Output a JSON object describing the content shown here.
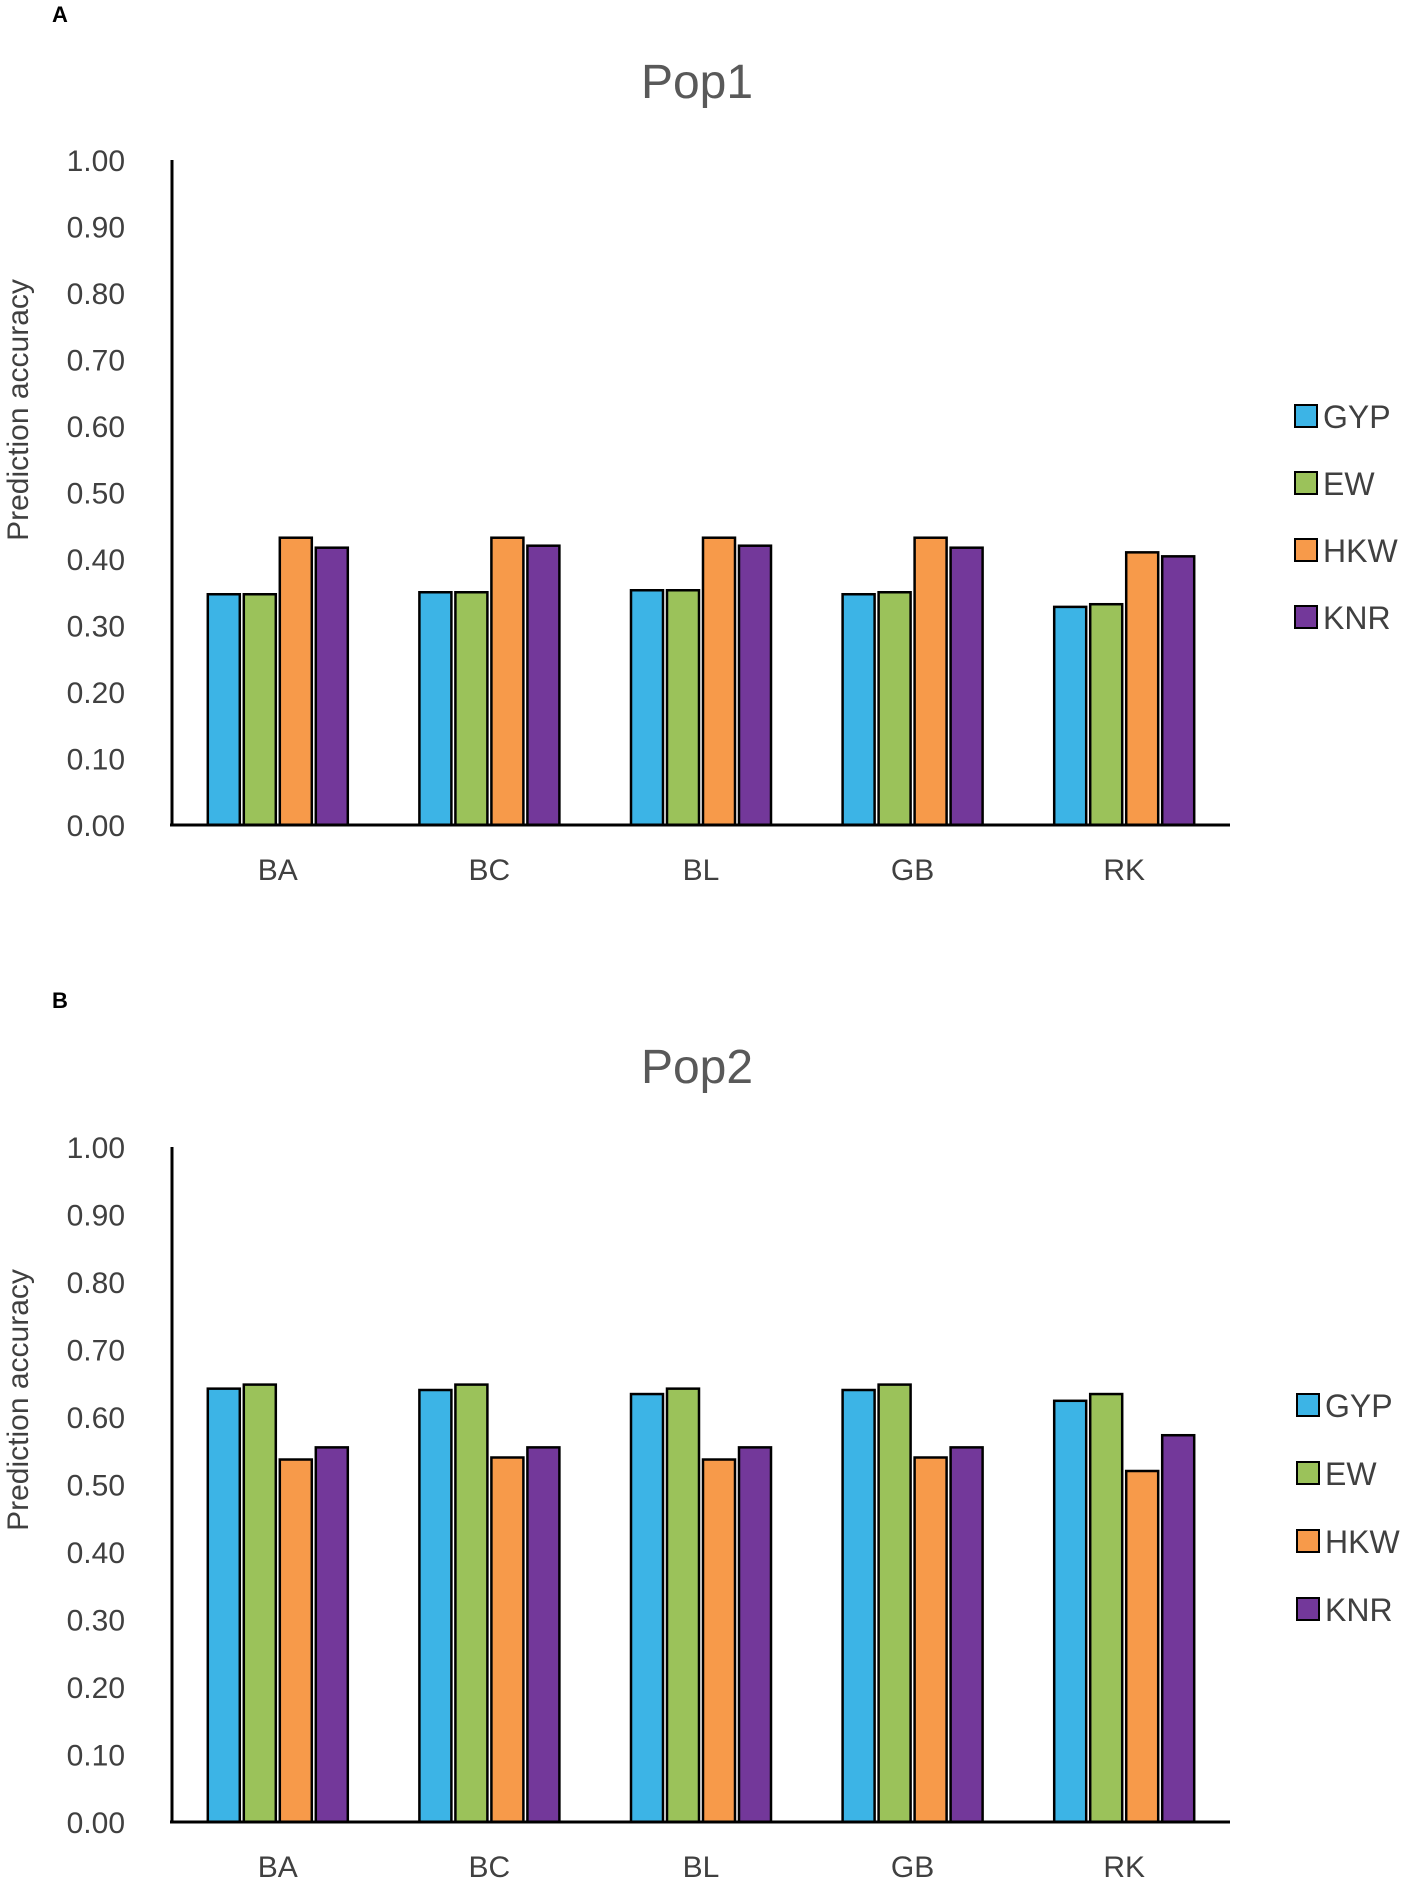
{
  "chart_data": [
    {
      "panel": "A",
      "type": "bar",
      "title": "Pop1",
      "xlabel": "",
      "ylabel": "Prediction accuracy",
      "ylim": [
        0,
        1
      ],
      "yticks": [
        "0.00",
        "0.10",
        "0.20",
        "0.30",
        "0.40",
        "0.50",
        "0.60",
        "0.70",
        "0.80",
        "0.90",
        "1.00"
      ],
      "categories": [
        "BA",
        "BC",
        "BL",
        "GB",
        "RK"
      ],
      "legend_position": "right",
      "grid": false,
      "series": [
        {
          "name": "GYP",
          "color": "#3CB4E6",
          "values": [
            0.347,
            0.35,
            0.353,
            0.347,
            0.328
          ]
        },
        {
          "name": "EW",
          "color": "#9BC25A",
          "values": [
            0.347,
            0.35,
            0.353,
            0.35,
            0.332
          ]
        },
        {
          "name": "HKW",
          "color": "#F79A4A",
          "values": [
            0.432,
            0.432,
            0.432,
            0.432,
            0.41
          ]
        },
        {
          "name": "KNR",
          "color": "#73389A",
          "values": [
            0.417,
            0.42,
            0.42,
            0.417,
            0.404
          ]
        }
      ]
    },
    {
      "panel": "B",
      "type": "bar",
      "title": "Pop2",
      "xlabel": "",
      "ylabel": "Prediction accuracy",
      "ylim": [
        0,
        1
      ],
      "yticks": [
        "0.00",
        "0.10",
        "0.20",
        "0.30",
        "0.40",
        "0.50",
        "0.60",
        "0.70",
        "0.80",
        "0.90",
        "1.00"
      ],
      "categories": [
        "BA",
        "BC",
        "BL",
        "GB",
        "RK"
      ],
      "legend_position": "right",
      "grid": false,
      "series": [
        {
          "name": "GYP",
          "color": "#3CB4E6",
          "values": [
            0.642,
            0.64,
            0.634,
            0.64,
            0.624
          ]
        },
        {
          "name": "EW",
          "color": "#9BC25A",
          "values": [
            0.648,
            0.648,
            0.642,
            0.648,
            0.634
          ]
        },
        {
          "name": "HKW",
          "color": "#F79A4A",
          "values": [
            0.537,
            0.54,
            0.537,
            0.54,
            0.52
          ]
        },
        {
          "name": "KNR",
          "color": "#73389A",
          "values": [
            0.555,
            0.555,
            0.555,
            0.555,
            0.573
          ]
        }
      ]
    }
  ]
}
